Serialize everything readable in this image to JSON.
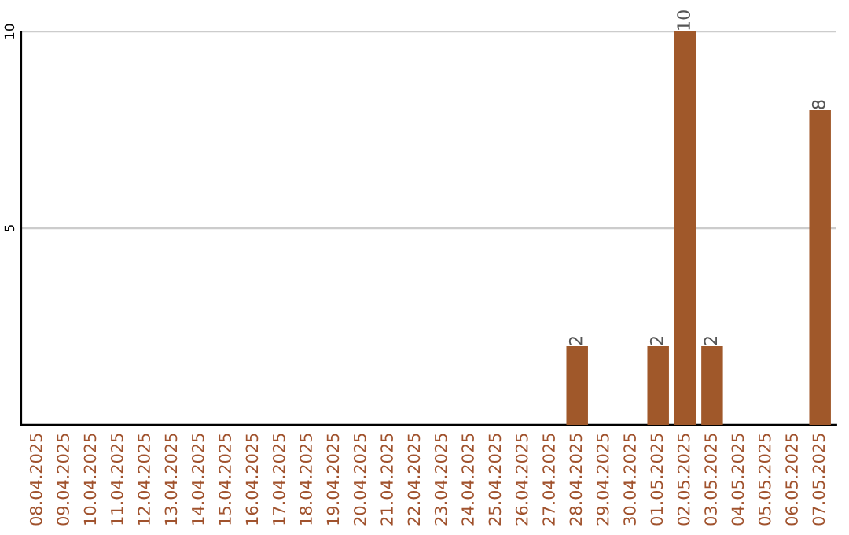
{
  "chart_data": {
    "type": "bar",
    "categories": [
      "08.04.2025",
      "09.04.2025",
      "10.04.2025",
      "11.04.2025",
      "12.04.2025",
      "13.04.2025",
      "14.04.2025",
      "15.04.2025",
      "16.04.2025",
      "17.04.2025",
      "18.04.2025",
      "19.04.2025",
      "20.04.2025",
      "21.04.2025",
      "22.04.2025",
      "23.04.2025",
      "24.04.2025",
      "25.04.2025",
      "26.04.2025",
      "27.04.2025",
      "28.04.2025",
      "29.04.2025",
      "30.04.2025",
      "01.05.2025",
      "02.05.2025",
      "03.05.2025",
      "04.05.2025",
      "05.05.2025",
      "06.05.2025",
      "07.05.2025"
    ],
    "values": [
      0,
      0,
      0,
      0,
      0,
      0,
      0,
      0,
      0,
      0,
      0,
      0,
      0,
      0,
      0,
      0,
      0,
      0,
      0,
      0,
      2,
      0,
      0,
      2,
      10,
      2,
      0,
      0,
      0,
      8
    ],
    "value_labels": [
      null,
      null,
      null,
      null,
      null,
      null,
      null,
      null,
      null,
      null,
      null,
      null,
      null,
      null,
      null,
      null,
      null,
      null,
      null,
      null,
      "2",
      null,
      null,
      "2",
      "10",
      "2",
      null,
      null,
      null,
      "8"
    ],
    "color": "#a0582a",
    "ylim": [
      0,
      10
    ],
    "yticks": [
      5,
      10
    ],
    "grid": "y"
  }
}
